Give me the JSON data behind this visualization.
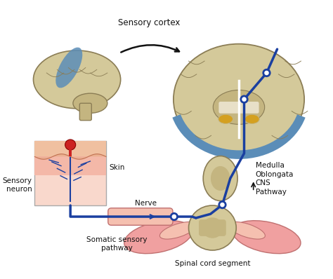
{
  "title": "",
  "labels": {
    "sensory_cortex": "Sensory cortex",
    "skin": "Skin",
    "sensory_neuron": "Sensory\nneuron",
    "nerve": "Nerve",
    "somatic_sensory_pathway": "Somatic sensory\npathway",
    "medulla_oblongata": "Medulla\nOblongata",
    "cns_pathway": "CNS\nPathway",
    "spinal_cord_segment": "Spinal cord segment"
  },
  "colors": {
    "background_color": "#ffffff",
    "brain_fill": "#d4c99a",
    "brain_edge": "#8b7d55",
    "brain_inner": "#c4b580",
    "brain_cortex_blue": "#5b8db8",
    "pathway_blue": "#1a3fa0",
    "skin_top": "#f0c0a0",
    "skin_mid": "#f4b8a8",
    "skin_bg": "#f9d8cc",
    "skin_wave": "#e8a888",
    "skin_wave_line": "#c07050",
    "muscle_pink": "#f0a0a0",
    "muscle_edge": "#c07070",
    "nerve_fill": "#f5c0b0",
    "red_receptor": "#cc2222",
    "red_receptor_edge": "#880000",
    "thalamus": "#d4a020",
    "inner_struct": "#c4b580",
    "white_matter": "#e8e0c8",
    "text_color": "#111111",
    "synapse_fill": "#ffffff",
    "arrow_black": "#111111"
  },
  "font_sizes": {
    "label": 7.5,
    "cortex_label": 8.5
  }
}
